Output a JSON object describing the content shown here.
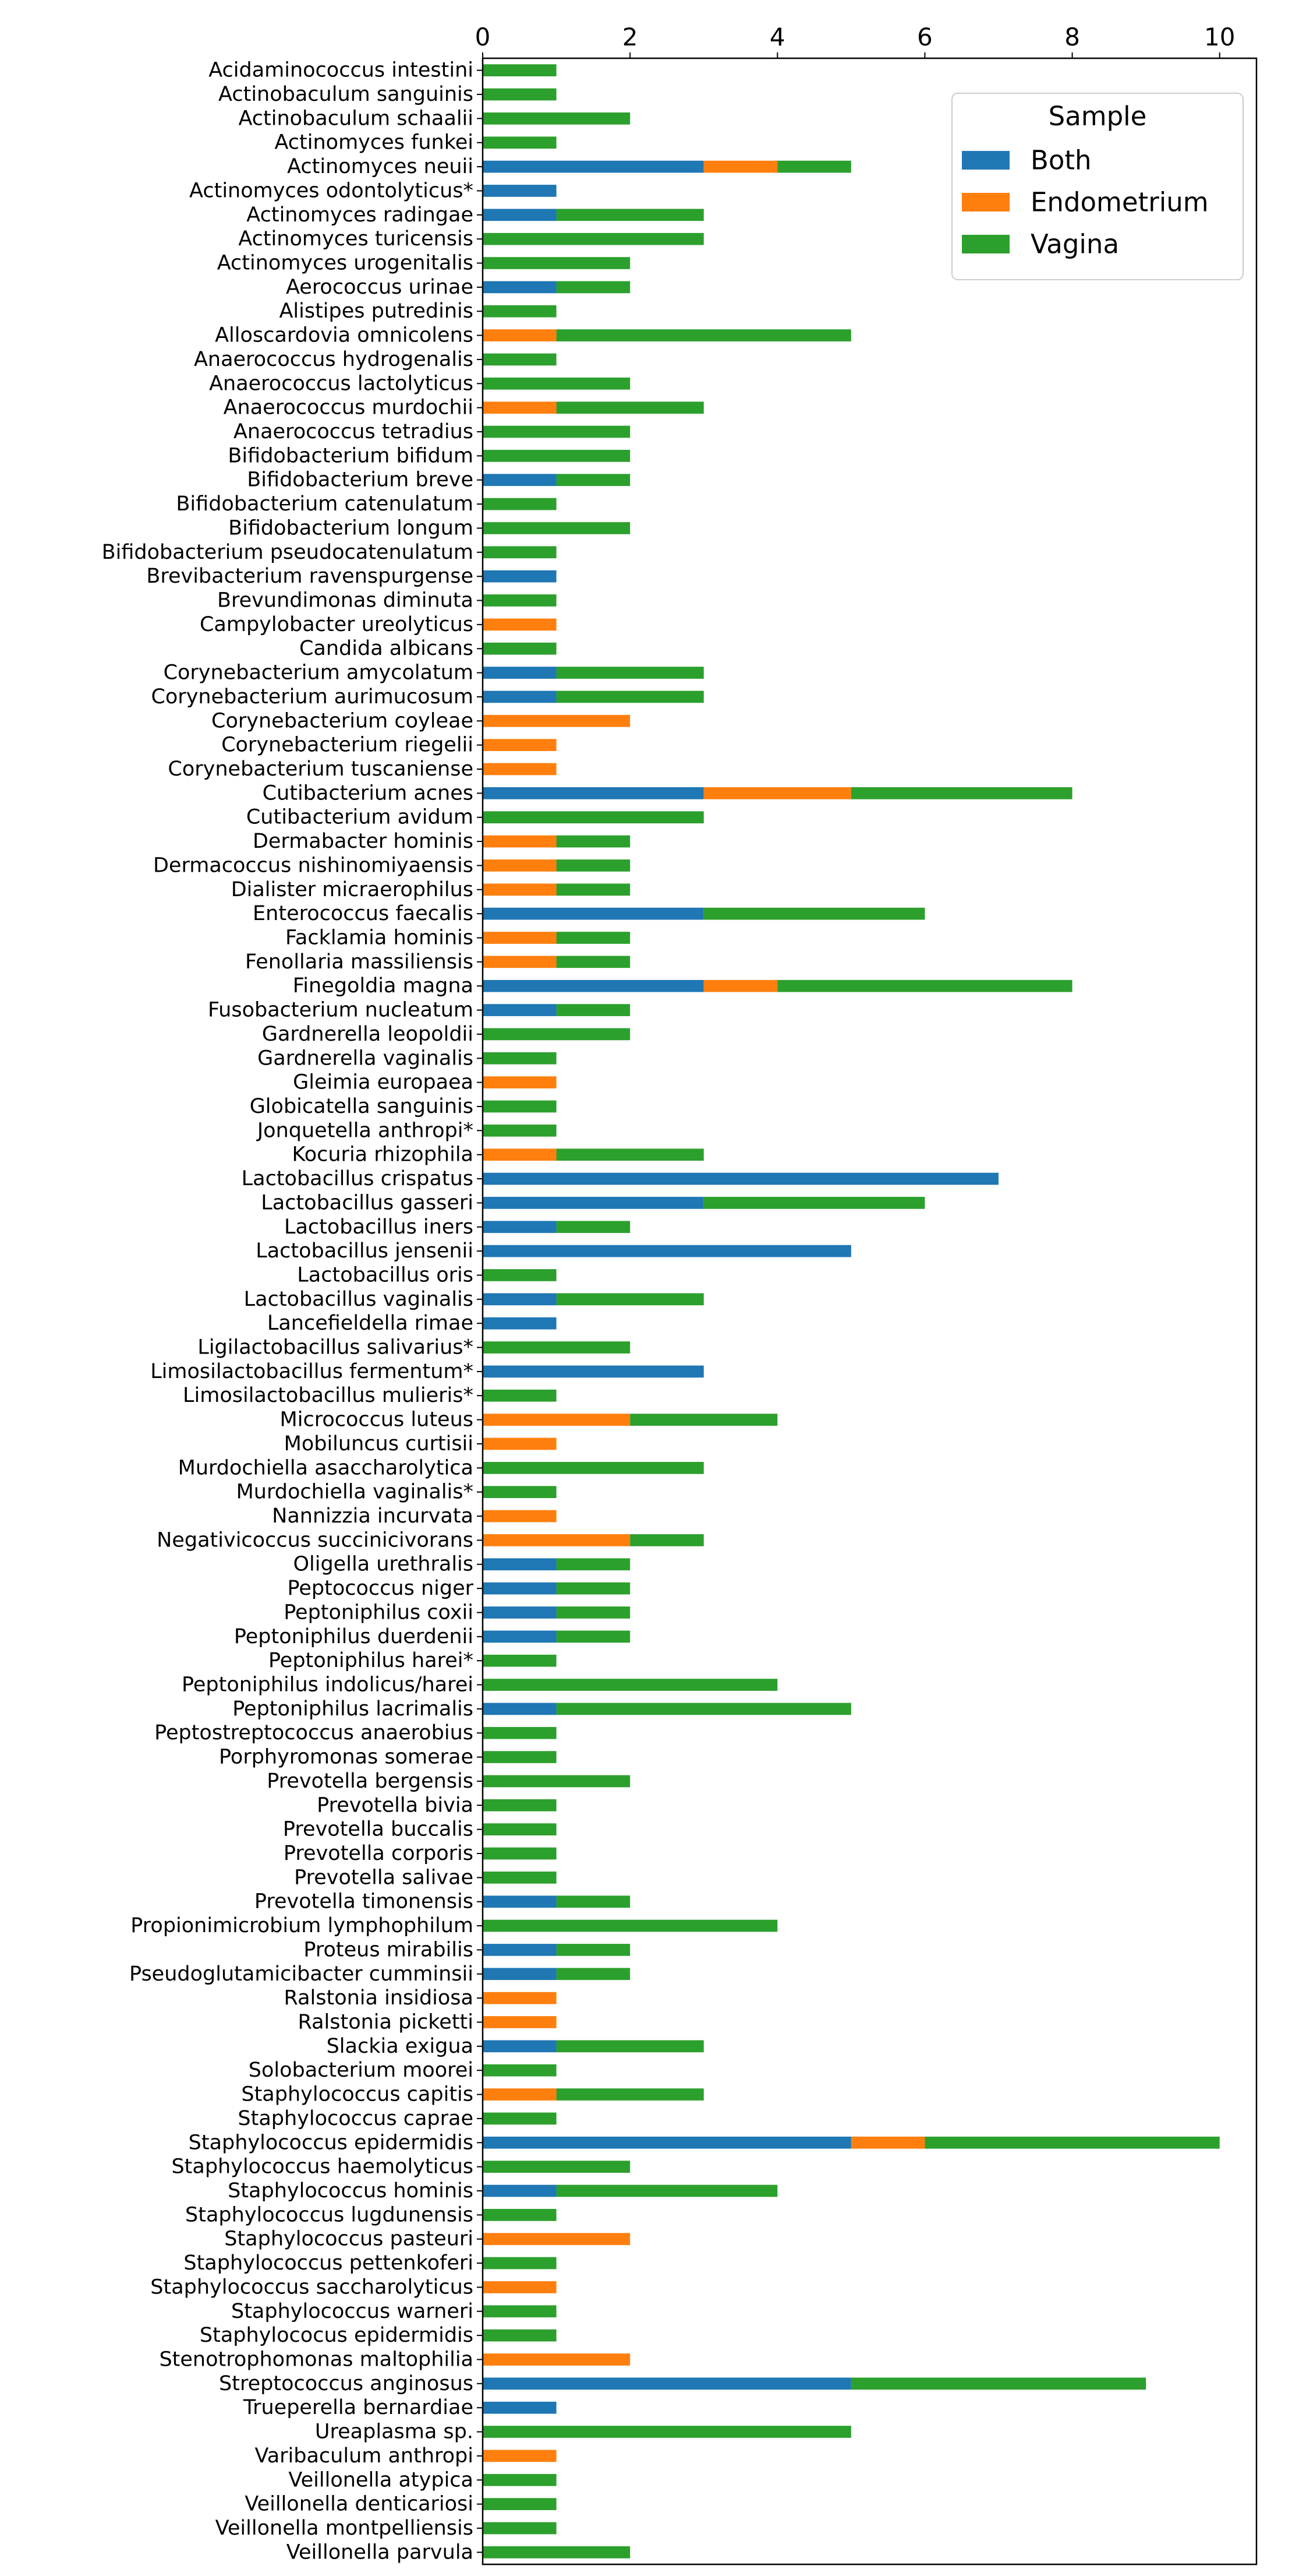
{
  "chart_data": {
    "type": "bar",
    "orientation": "horizontal",
    "stacked": true,
    "title": "",
    "xlabel": "",
    "ylabel": "",
    "xlim": [
      0,
      10.5
    ],
    "xticks": [
      0,
      2,
      4,
      6,
      8,
      10
    ],
    "x_axis_position": "top",
    "grid": false,
    "legend": {
      "title": "Sample",
      "position": "top-right"
    },
    "colors": {
      "Both": "#1f77b4",
      "Endometrium": "#ff7f0e",
      "Vagina": "#2ca02c"
    },
    "categories": [
      "Acidaminococcus intestini",
      "Actinobaculum sanguinis",
      "Actinobaculum schaalii",
      "Actinomyces funkei",
      "Actinomyces neuii",
      "Actinomyces odontolyticus*",
      "Actinomyces radingae",
      "Actinomyces turicensis",
      "Actinomyces urogenitalis",
      "Aerococcus urinae",
      "Alistipes putredinis",
      "Alloscardovia omnicolens",
      "Anaerococcus hydrogenalis",
      "Anaerococcus lactolyticus",
      "Anaerococcus murdochii",
      "Anaerococcus tetradius",
      "Bifidobacterium bifidum",
      "Bifidobacterium breve",
      "Bifidobacterium catenulatum",
      "Bifidobacterium longum",
      "Bifidobacterium pseudocatenulatum",
      "Brevibacterium ravenspurgense",
      "Brevundimonas diminuta",
      "Campylobacter ureolyticus",
      "Candida albicans",
      "Corynebacterium amycolatum",
      "Corynebacterium aurimucosum",
      "Corynebacterium coyleae",
      "Corynebacterium riegelii",
      "Corynebacterium tuscaniense",
      "Cutibacterium acnes",
      "Cutibacterium avidum",
      "Dermabacter hominis",
      "Dermacoccus nishinomiyaensis",
      "Dialister micraerophilus",
      "Enterococcus faecalis",
      "Facklamia hominis",
      "Fenollaria massiliensis",
      "Finegoldia magna",
      "Fusobacterium nucleatum",
      "Gardnerella leopoldii",
      "Gardnerella vaginalis",
      "Gleimia europaea",
      "Globicatella sanguinis",
      "Jonquetella anthropi*",
      "Kocuria rhizophila",
      "Lactobacillus crispatus",
      "Lactobacillus gasseri",
      "Lactobacillus iners",
      "Lactobacillus jensenii",
      "Lactobacillus oris",
      "Lactobacillus vaginalis",
      "Lancefieldella rimae",
      "Ligilactobacillus salivarius*",
      "Limosilactobacillus fermentum*",
      "Limosilactobacillus mulieris*",
      "Micrococcus luteus",
      "Mobiluncus curtisii",
      "Murdochiella asaccharolytica",
      "Murdochiella vaginalis*",
      "Nannizzia incurvata",
      "Negativicoccus succinicivorans",
      "Oligella urethralis",
      "Peptococcus niger",
      "Peptoniphilus coxii",
      "Peptoniphilus duerdenii",
      "Peptoniphilus harei*",
      "Peptoniphilus indolicus/harei",
      "Peptoniphilus lacrimalis",
      "Peptostreptococcus anaerobius",
      "Porphyromonas somerae",
      "Prevotella bergensis",
      "Prevotella bivia",
      "Prevotella buccalis",
      "Prevotella corporis",
      "Prevotella salivae",
      "Prevotella timonensis",
      "Propionimicrobium lymphophilum",
      "Proteus mirabilis",
      "Pseudoglutamicibacter cumminsii",
      "Ralstonia insidiosa",
      "Ralstonia picketti",
      "Slackia exigua",
      "Solobacterium moorei",
      "Staphylococcus capitis",
      "Staphylococcus caprae",
      "Staphylococcus epidermidis",
      "Staphylococcus haemolyticus",
      "Staphylococcus hominis",
      "Staphylococcus lugdunensis",
      "Staphylococcus pasteuri",
      "Staphylococcus pettenkoferi",
      "Staphylococcus saccharolyticus",
      "Staphylococcus warneri",
      "Staphylococus epidermidis",
      "Stenotrophomonas maltophilia",
      "Streptococcus anginosus",
      "Trueperella bernardiae",
      "Ureaplasma sp.",
      "Varibaculum anthropi",
      "Veillonella atypica",
      "Veillonella denticariosi",
      "Veillonella montpelliensis",
      "Veillonella parvula"
    ],
    "series": [
      {
        "name": "Both",
        "values": [
          0,
          0,
          0,
          0,
          3,
          1,
          1,
          0,
          0,
          1,
          0,
          0,
          0,
          0,
          0,
          0,
          0,
          1,
          0,
          0,
          0,
          1,
          0,
          0,
          0,
          1,
          1,
          0,
          0,
          0,
          3,
          0,
          0,
          0,
          0,
          3,
          0,
          0,
          3,
          1,
          0,
          0,
          0,
          0,
          0,
          0,
          7,
          3,
          1,
          5,
          0,
          1,
          1,
          0,
          3,
          0,
          0,
          0,
          0,
          0,
          0,
          0,
          1,
          1,
          1,
          1,
          0,
          0,
          1,
          0,
          0,
          0,
          0,
          0,
          0,
          0,
          1,
          0,
          1,
          1,
          0,
          0,
          1,
          0,
          0,
          0,
          5,
          0,
          1,
          0,
          0,
          0,
          0,
          0,
          0,
          0,
          5,
          1,
          0,
          0,
          0,
          0,
          0,
          0
        ]
      },
      {
        "name": "Endometrium",
        "values": [
          0,
          0,
          0,
          0,
          1,
          0,
          0,
          0,
          0,
          0,
          0,
          1,
          0,
          0,
          1,
          0,
          0,
          0,
          0,
          0,
          0,
          0,
          0,
          1,
          0,
          0,
          0,
          2,
          1,
          1,
          2,
          0,
          1,
          1,
          1,
          0,
          1,
          1,
          1,
          0,
          0,
          0,
          1,
          0,
          0,
          1,
          0,
          0,
          0,
          0,
          0,
          0,
          0,
          0,
          0,
          0,
          2,
          1,
          0,
          0,
          1,
          2,
          0,
          0,
          0,
          0,
          0,
          0,
          0,
          0,
          0,
          0,
          0,
          0,
          0,
          0,
          0,
          0,
          0,
          0,
          1,
          1,
          0,
          0,
          1,
          0,
          1,
          0,
          0,
          0,
          2,
          0,
          1,
          0,
          0,
          2,
          0,
          0,
          0,
          1,
          0,
          0,
          0,
          0
        ]
      },
      {
        "name": "Vagina",
        "values": [
          1,
          1,
          2,
          1,
          1,
          0,
          2,
          3,
          2,
          1,
          1,
          4,
          1,
          2,
          2,
          2,
          2,
          1,
          1,
          2,
          1,
          0,
          1,
          0,
          1,
          2,
          2,
          0,
          0,
          0,
          3,
          3,
          1,
          1,
          1,
          3,
          1,
          1,
          4,
          1,
          2,
          1,
          0,
          1,
          1,
          2,
          0,
          3,
          1,
          0,
          1,
          2,
          0,
          2,
          0,
          1,
          2,
          0,
          3,
          1,
          0,
          1,
          1,
          1,
          1,
          1,
          1,
          4,
          4,
          1,
          1,
          2,
          1,
          1,
          1,
          1,
          1,
          4,
          1,
          1,
          0,
          0,
          2,
          1,
          2,
          1,
          4,
          2,
          3,
          1,
          0,
          1,
          0,
          1,
          1,
          0,
          4,
          0,
          5,
          0,
          1,
          1,
          1,
          2
        ]
      }
    ]
  }
}
